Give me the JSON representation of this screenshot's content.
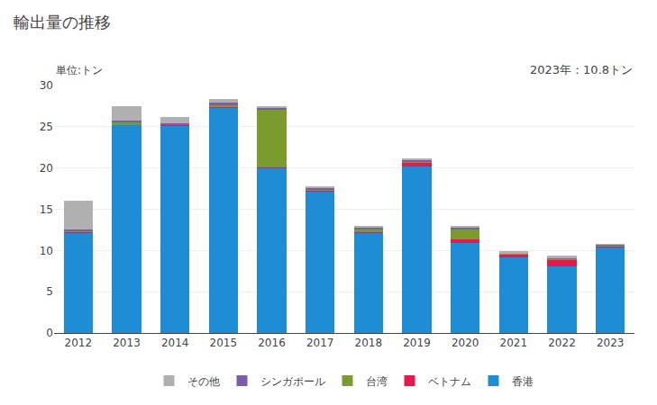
{
  "chart_data": {
    "type": "bar",
    "title": "輸出量の推移",
    "subtitle": "単位:トン",
    "annotations": [
      "2023年：10.8トン"
    ],
    "categories": [
      "2012",
      "2013",
      "2014",
      "2015",
      "2016",
      "2017",
      "2018",
      "2019",
      "2020",
      "2021",
      "2022",
      "2023"
    ],
    "series": [
      {
        "name": "香港",
        "color": "#1f8dd6",
        "values": [
          12.2,
          25.2,
          25.1,
          27.3,
          20.0,
          17.2,
          12.2,
          20.2,
          10.9,
          9.2,
          8.1,
          10.4
        ]
      },
      {
        "name": "ベトナム",
        "color": "#e8174d",
        "values": [
          0.1,
          0.1,
          0.1,
          0.1,
          0.1,
          0.1,
          0.1,
          0.5,
          0.5,
          0.3,
          0.8,
          0.1
        ]
      },
      {
        "name": "台湾",
        "color": "#7a9b2e",
        "values": [
          0.1,
          0.2,
          0.1,
          0.2,
          7.0,
          0.1,
          0.2,
          0.1,
          1.2,
          0.1,
          0.1,
          0.1
        ]
      },
      {
        "name": "シンガポール",
        "color": "#7b5ea7",
        "values": [
          0.2,
          0.3,
          0.1,
          0.3,
          0.2,
          0.2,
          0.3,
          0.2,
          0.2,
          0.1,
          0.1,
          0.1
        ]
      },
      {
        "name": "その他",
        "color": "#b0b0b0",
        "values": [
          3.4,
          1.7,
          0.8,
          0.5,
          0.2,
          0.1,
          0.2,
          0.1,
          0.2,
          0.2,
          0.3,
          0.1
        ]
      }
    ],
    "stacked": true,
    "ylim": [
      0,
      30
    ],
    "yticks": [
      0,
      5,
      10,
      15,
      20,
      25,
      30
    ],
    "grid": true,
    "legend": "bottom"
  }
}
